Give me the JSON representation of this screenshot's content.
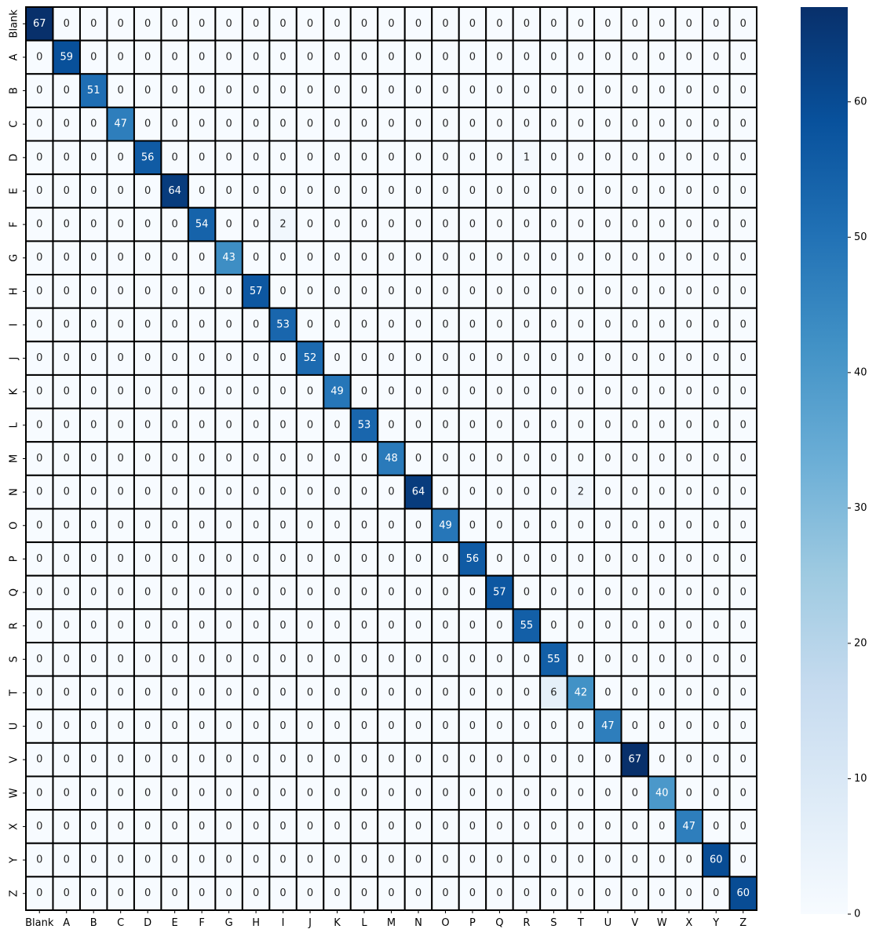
{
  "chart_data": {
    "type": "heatmap",
    "title": "",
    "xlabel": "",
    "ylabel": "",
    "labels": [
      "Blank",
      "A",
      "B",
      "C",
      "D",
      "E",
      "F",
      "G",
      "H",
      "I",
      "J",
      "K",
      "L",
      "M",
      "N",
      "O",
      "P",
      "Q",
      "R",
      "S",
      "T",
      "U",
      "V",
      "W",
      "X",
      "Y",
      "Z"
    ],
    "matrix": [
      [
        67,
        0,
        0,
        0,
        0,
        0,
        0,
        0,
        0,
        0,
        0,
        0,
        0,
        0,
        0,
        0,
        0,
        0,
        0,
        0,
        0,
        0,
        0,
        0,
        0,
        0,
        0
      ],
      [
        0,
        59,
        0,
        0,
        0,
        0,
        0,
        0,
        0,
        0,
        0,
        0,
        0,
        0,
        0,
        0,
        0,
        0,
        0,
        0,
        0,
        0,
        0,
        0,
        0,
        0,
        0
      ],
      [
        0,
        0,
        51,
        0,
        0,
        0,
        0,
        0,
        0,
        0,
        0,
        0,
        0,
        0,
        0,
        0,
        0,
        0,
        0,
        0,
        0,
        0,
        0,
        0,
        0,
        0,
        0
      ],
      [
        0,
        0,
        0,
        47,
        0,
        0,
        0,
        0,
        0,
        0,
        0,
        0,
        0,
        0,
        0,
        0,
        0,
        0,
        0,
        0,
        0,
        0,
        0,
        0,
        0,
        0,
        0
      ],
      [
        0,
        0,
        0,
        0,
        56,
        0,
        0,
        0,
        0,
        0,
        0,
        0,
        0,
        0,
        0,
        0,
        0,
        0,
        1,
        0,
        0,
        0,
        0,
        0,
        0,
        0,
        0
      ],
      [
        0,
        0,
        0,
        0,
        0,
        64,
        0,
        0,
        0,
        0,
        0,
        0,
        0,
        0,
        0,
        0,
        0,
        0,
        0,
        0,
        0,
        0,
        0,
        0,
        0,
        0,
        0
      ],
      [
        0,
        0,
        0,
        0,
        0,
        0,
        54,
        0,
        0,
        2,
        0,
        0,
        0,
        0,
        0,
        0,
        0,
        0,
        0,
        0,
        0,
        0,
        0,
        0,
        0,
        0,
        0
      ],
      [
        0,
        0,
        0,
        0,
        0,
        0,
        0,
        43,
        0,
        0,
        0,
        0,
        0,
        0,
        0,
        0,
        0,
        0,
        0,
        0,
        0,
        0,
        0,
        0,
        0,
        0,
        0
      ],
      [
        0,
        0,
        0,
        0,
        0,
        0,
        0,
        0,
        57,
        0,
        0,
        0,
        0,
        0,
        0,
        0,
        0,
        0,
        0,
        0,
        0,
        0,
        0,
        0,
        0,
        0,
        0
      ],
      [
        0,
        0,
        0,
        0,
        0,
        0,
        0,
        0,
        0,
        53,
        0,
        0,
        0,
        0,
        0,
        0,
        0,
        0,
        0,
        0,
        0,
        0,
        0,
        0,
        0,
        0,
        0
      ],
      [
        0,
        0,
        0,
        0,
        0,
        0,
        0,
        0,
        0,
        0,
        52,
        0,
        0,
        0,
        0,
        0,
        0,
        0,
        0,
        0,
        0,
        0,
        0,
        0,
        0,
        0,
        0
      ],
      [
        0,
        0,
        0,
        0,
        0,
        0,
        0,
        0,
        0,
        0,
        0,
        49,
        0,
        0,
        0,
        0,
        0,
        0,
        0,
        0,
        0,
        0,
        0,
        0,
        0,
        0,
        0
      ],
      [
        0,
        0,
        0,
        0,
        0,
        0,
        0,
        0,
        0,
        0,
        0,
        0,
        53,
        0,
        0,
        0,
        0,
        0,
        0,
        0,
        0,
        0,
        0,
        0,
        0,
        0,
        0
      ],
      [
        0,
        0,
        0,
        0,
        0,
        0,
        0,
        0,
        0,
        0,
        0,
        0,
        0,
        48,
        0,
        0,
        0,
        0,
        0,
        0,
        0,
        0,
        0,
        0,
        0,
        0,
        0
      ],
      [
        0,
        0,
        0,
        0,
        0,
        0,
        0,
        0,
        0,
        0,
        0,
        0,
        0,
        0,
        64,
        0,
        0,
        0,
        0,
        0,
        2,
        0,
        0,
        0,
        0,
        0,
        0
      ],
      [
        0,
        0,
        0,
        0,
        0,
        0,
        0,
        0,
        0,
        0,
        0,
        0,
        0,
        0,
        0,
        49,
        0,
        0,
        0,
        0,
        0,
        0,
        0,
        0,
        0,
        0,
        0
      ],
      [
        0,
        0,
        0,
        0,
        0,
        0,
        0,
        0,
        0,
        0,
        0,
        0,
        0,
        0,
        0,
        0,
        56,
        0,
        0,
        0,
        0,
        0,
        0,
        0,
        0,
        0,
        0
      ],
      [
        0,
        0,
        0,
        0,
        0,
        0,
        0,
        0,
        0,
        0,
        0,
        0,
        0,
        0,
        0,
        0,
        0,
        57,
        0,
        0,
        0,
        0,
        0,
        0,
        0,
        0,
        0
      ],
      [
        0,
        0,
        0,
        0,
        0,
        0,
        0,
        0,
        0,
        0,
        0,
        0,
        0,
        0,
        0,
        0,
        0,
        0,
        55,
        0,
        0,
        0,
        0,
        0,
        0,
        0,
        0
      ],
      [
        0,
        0,
        0,
        0,
        0,
        0,
        0,
        0,
        0,
        0,
        0,
        0,
        0,
        0,
        0,
        0,
        0,
        0,
        0,
        55,
        0,
        0,
        0,
        0,
        0,
        0,
        0
      ],
      [
        0,
        0,
        0,
        0,
        0,
        0,
        0,
        0,
        0,
        0,
        0,
        0,
        0,
        0,
        0,
        0,
        0,
        0,
        0,
        6,
        42,
        0,
        0,
        0,
        0,
        0,
        0
      ],
      [
        0,
        0,
        0,
        0,
        0,
        0,
        0,
        0,
        0,
        0,
        0,
        0,
        0,
        0,
        0,
        0,
        0,
        0,
        0,
        0,
        0,
        47,
        0,
        0,
        0,
        0,
        0
      ],
      [
        0,
        0,
        0,
        0,
        0,
        0,
        0,
        0,
        0,
        0,
        0,
        0,
        0,
        0,
        0,
        0,
        0,
        0,
        0,
        0,
        0,
        0,
        67,
        0,
        0,
        0,
        0
      ],
      [
        0,
        0,
        0,
        0,
        0,
        0,
        0,
        0,
        0,
        0,
        0,
        0,
        0,
        0,
        0,
        0,
        0,
        0,
        0,
        0,
        0,
        0,
        0,
        40,
        0,
        0,
        0
      ],
      [
        0,
        0,
        0,
        0,
        0,
        0,
        0,
        0,
        0,
        0,
        0,
        0,
        0,
        0,
        0,
        0,
        0,
        0,
        0,
        0,
        0,
        0,
        0,
        0,
        47,
        0,
        0
      ],
      [
        0,
        0,
        0,
        0,
        0,
        0,
        0,
        0,
        0,
        0,
        0,
        0,
        0,
        0,
        0,
        0,
        0,
        0,
        0,
        0,
        0,
        0,
        0,
        0,
        0,
        60,
        0
      ],
      [
        0,
        0,
        0,
        0,
        0,
        0,
        0,
        0,
        0,
        0,
        0,
        0,
        0,
        0,
        0,
        0,
        0,
        0,
        0,
        0,
        0,
        0,
        0,
        0,
        0,
        0,
        60
      ]
    ],
    "value_range": [
      0,
      67
    ],
    "colorbar": {
      "ticks": [
        0,
        10,
        20,
        30,
        40,
        50,
        60
      ],
      "colors": [
        "#f7fbff",
        "#deebf7",
        "#c6dbef",
        "#9ecae1",
        "#6baed6",
        "#4292c6",
        "#2171b5",
        "#08519c",
        "#08306b"
      ]
    },
    "cell_border_color": "#000000",
    "label_color_dark": "#262626",
    "label_color_light": "#ffffff"
  }
}
